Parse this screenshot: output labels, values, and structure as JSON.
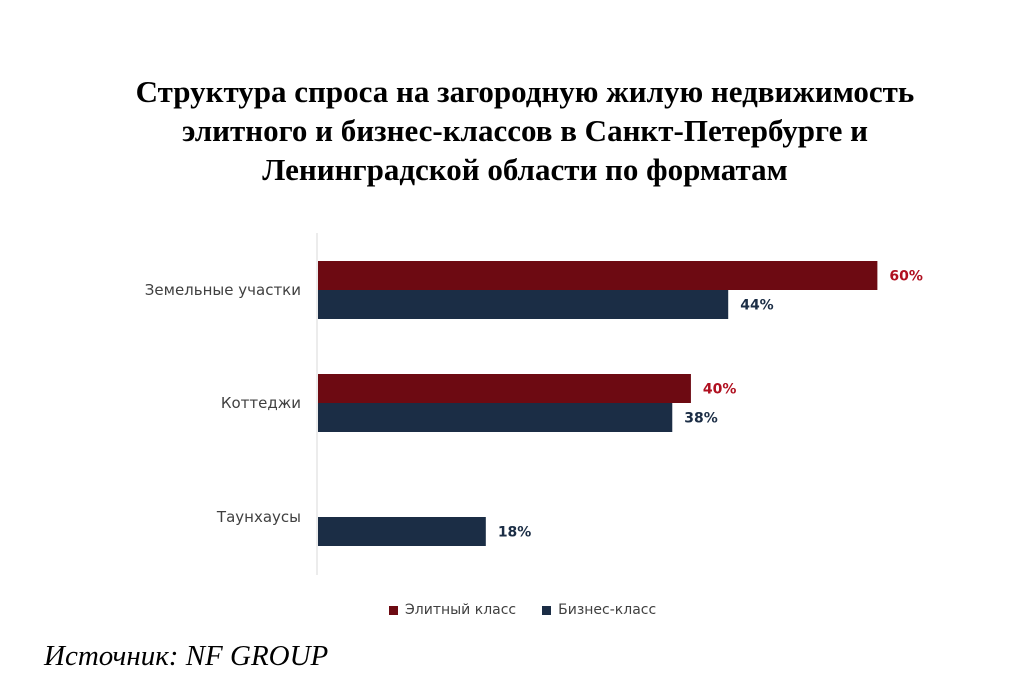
{
  "title_lines": [
    "Структура спроса на загородную жилую недвижимость",
    "элитного и бизнес-классов в Санкт-Петербурге и",
    "Ленинградской области по форматам"
  ],
  "source": "Источник: NF GROUP",
  "colors": {
    "elite": "#6d0a12",
    "business": "#1b2d45",
    "elite_label": "#b01020",
    "business_label": "#1b2d45",
    "axis": "#d9d9d9"
  },
  "chart_data": {
    "type": "bar",
    "orientation": "horizontal",
    "categories": [
      "Земельные участки",
      "Коттеджи",
      "Таунхаусы"
    ],
    "series": [
      {
        "name": "Элитный класс",
        "values": [
          60,
          40,
          null
        ],
        "labels": [
          "60%",
          "40%",
          ""
        ]
      },
      {
        "name": "Бизнес-класс",
        "values": [
          44,
          38,
          18
        ],
        "labels": [
          "44%",
          "38%",
          "18%"
        ]
      }
    ],
    "xlim": [
      0,
      65
    ],
    "legend_position": "bottom",
    "grid": false
  }
}
